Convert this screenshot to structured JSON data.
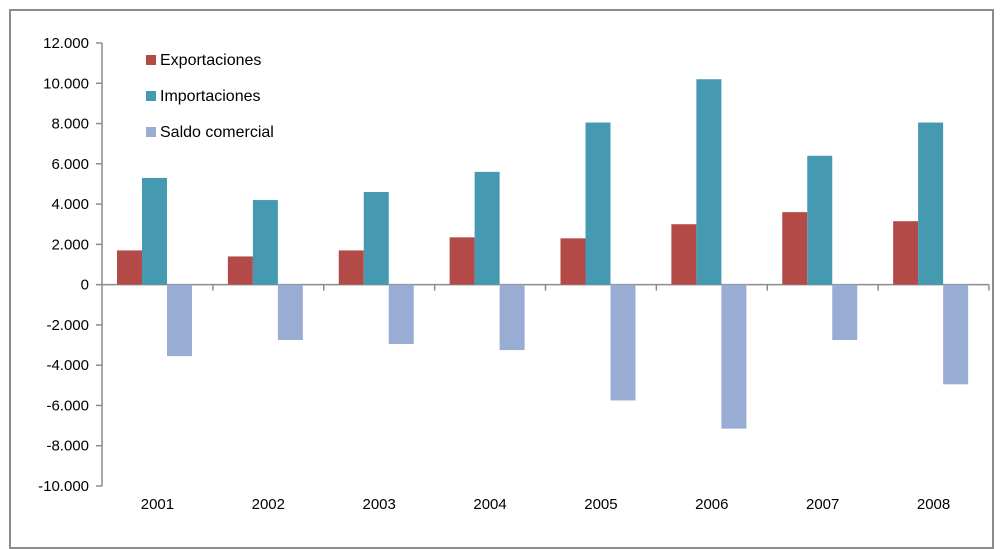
{
  "chart_data": {
    "type": "bar",
    "title": "",
    "xlabel": "",
    "ylabel": "",
    "categories": [
      "2001",
      "2002",
      "2003",
      "2004",
      "2005",
      "2006",
      "2007",
      "2008"
    ],
    "series": [
      {
        "name": "Exportaciones",
        "color": "#b44a47",
        "values": [
          1700,
          1400,
          1700,
          2350,
          2300,
          3000,
          3600,
          3150
        ]
      },
      {
        "name": "Importaciones",
        "color": "#4599b0",
        "values": [
          5300,
          4200,
          4600,
          5600,
          8050,
          10200,
          6400,
          8050
        ]
      },
      {
        "name": "Saldo comercial",
        "color": "#99add4",
        "values": [
          -3550,
          -2750,
          -2950,
          -3250,
          -5750,
          -7150,
          -2750,
          -4950
        ]
      }
    ],
    "ylim": [
      -10000,
      12000
    ],
    "yticks": [
      12000,
      10000,
      8000,
      6000,
      4000,
      2000,
      0,
      -2000,
      -4000,
      -6000,
      -8000,
      -10000
    ],
    "ytick_labels": [
      "12.000",
      "10.000",
      "8.000",
      "6.000",
      "4.000",
      "2.000",
      "0",
      "-2.000",
      "-4.000",
      "-6.000",
      "-8.000",
      "-10.000"
    ],
    "grid": false,
    "legend_position": "top-left",
    "axis_color": "#8c8c8c"
  }
}
